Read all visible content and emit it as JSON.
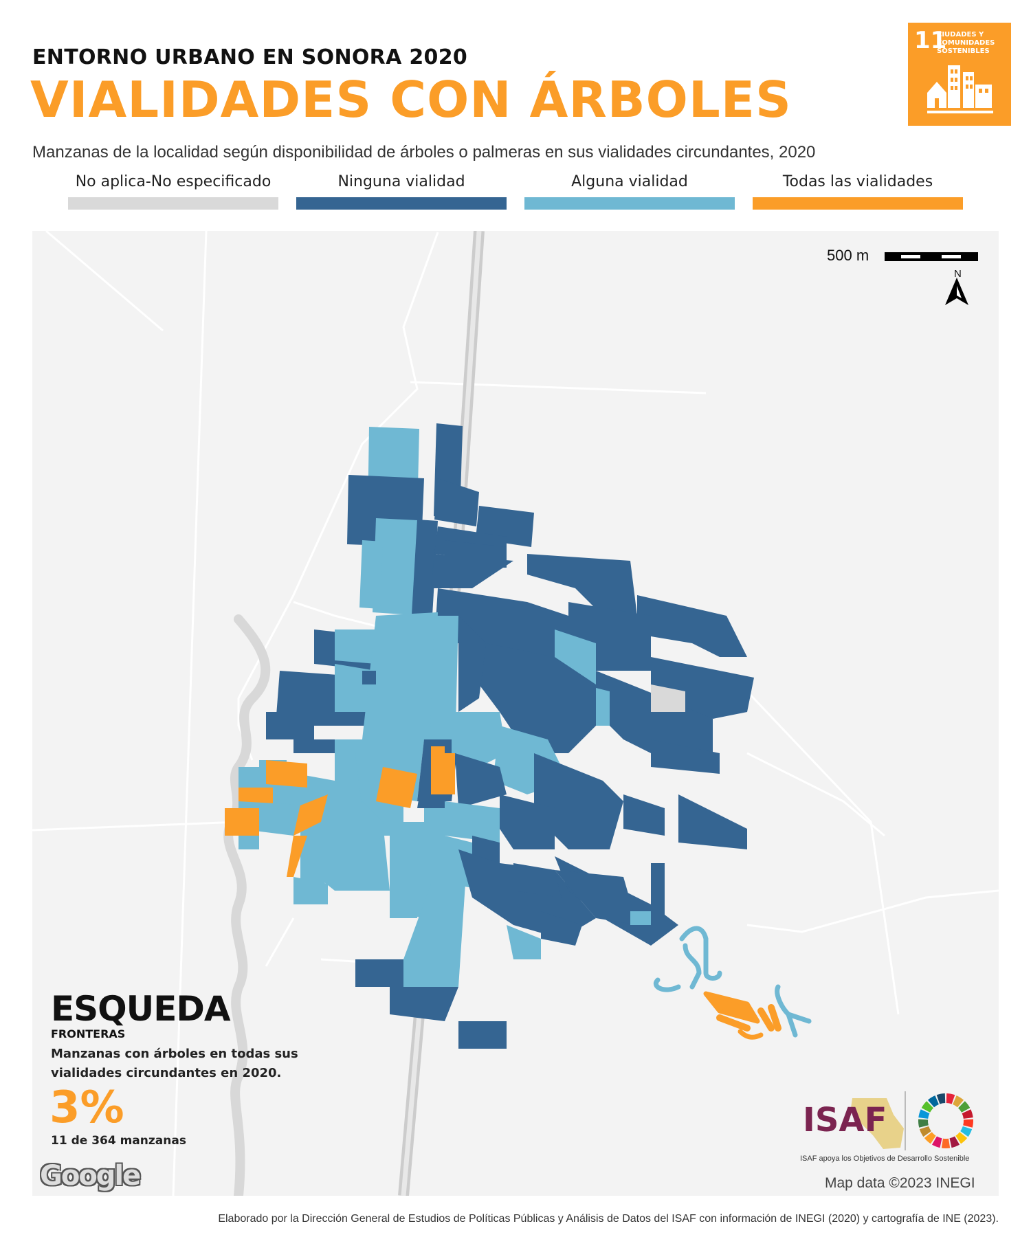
{
  "header": {
    "kicker": "ENTORNO URBANO EN SONORA 2020",
    "title": "VIALIDADES CON ÁRBOLES",
    "subtitle": "Manzanas de la localidad según disponibilidad de árboles o palmeras en sus vialidades circundantes, 2020"
  },
  "legend": [
    {
      "label": "No aplica-No especificado",
      "color": "#d9d9d9"
    },
    {
      "label": "Ninguna vialidad",
      "color": "#356592"
    },
    {
      "label": "Alguna vialidad",
      "color": "#6fb8d3"
    },
    {
      "label": "Todas las vialidades",
      "color": "#fb9d28"
    }
  ],
  "sdg_badge": {
    "number": "11",
    "text": "CIUDADES Y COMUNIDADES SOSTENIBLES",
    "color": "#fb9d28",
    "icon": "city-buildings-icon"
  },
  "map": {
    "scale_label": "500 m",
    "north_label": "N",
    "attribution": "Map data ©2023 INEGI",
    "basemap_logo": "Google"
  },
  "locality": {
    "name": "ESQUEDA",
    "region": "FRONTERAS",
    "stat_description": "Manzanas con árboles en todas sus vialidades circundantes en 2020.",
    "percent": "3%",
    "count_text": "11 de 364 manzanas"
  },
  "isaf": {
    "logo_text": "ISAF",
    "tagline": "ISAF apoya los Objetivos de Desarrollo Sostenible",
    "sdg_wheel_icon": "sdg-wheel-icon"
  },
  "footer": "Elaborado por la Dirección General de Estudios de Políticas Públicas y Análisis de Datos del ISAF con información de INEGI (2020) y cartografía de INE (2023).",
  "colors": {
    "accent": "#fb9d28",
    "none": "#356592",
    "some": "#6fb8d3",
    "all": "#fb9d28",
    "na": "#d9d9d9"
  }
}
